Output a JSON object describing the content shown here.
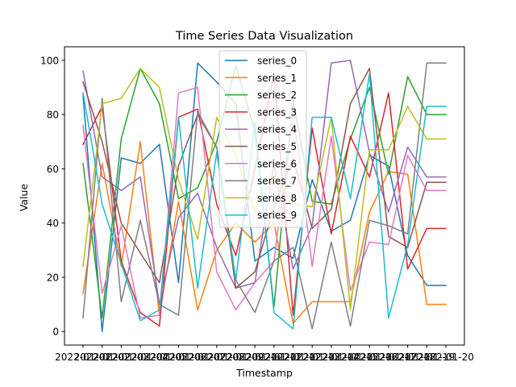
{
  "chart_data": {
    "type": "line",
    "title": "Time Series Data Visualization",
    "xlabel": "Timestamp",
    "ylabel": "Value",
    "x": [
      "2022-01-01",
      "2022-01-02",
      "2022-01-03",
      "2022-01-04",
      "2022-01-05",
      "2022-01-06",
      "2022-01-07",
      "2022-01-08",
      "2022-01-09",
      "2022-01-10",
      "2022-01-11",
      "2022-01-12",
      "2022-01-13",
      "2022-01-14",
      "2022-01-15",
      "2022-01-16",
      "2022-01-17",
      "2022-01-18",
      "2022-01-19",
      "2022-01-20"
    ],
    "xtick_labels": [
      "2022-01-01",
      "2022-01-02",
      "2022-01-03",
      "2022-01-04",
      "2022-01-05",
      "2022-01-06",
      "2022-01-07",
      "2022-01-08",
      "2022-01-09",
      "2022-01-10",
      "2022-01-11",
      "2022-01-12",
      "2022-01-13",
      "2022-01-14",
      "2022-01-15",
      "2022-01-16",
      "2022-01-17",
      "2022-01-18",
      "2022-01-19",
      "2022-01-20"
    ],
    "ylim": [
      -5,
      105
    ],
    "yticks": [
      0,
      20,
      40,
      60,
      80,
      100
    ],
    "grid": false,
    "legend_position": "top-center",
    "series": [
      {
        "name": "series_0",
        "color": "#1f77b4",
        "values": [
          87,
          0,
          64,
          62,
          69,
          18,
          99,
          92,
          84,
          26,
          31,
          27,
          56,
          37,
          41,
          65,
          61,
          28,
          17,
          17
        ]
      },
      {
        "name": "series_1",
        "color": "#ff7f0e",
        "values": [
          14,
          62,
          24,
          70,
          6,
          48,
          8,
          30,
          40,
          33,
          40,
          3,
          11,
          11,
          11,
          44,
          59,
          58,
          10,
          10
        ]
      },
      {
        "name": "series_2",
        "color": "#2ca02c",
        "values": [
          62,
          5,
          71,
          97,
          84,
          49,
          53,
          70,
          98,
          74,
          9,
          85,
          48,
          47,
          71,
          90,
          58,
          94,
          80,
          80
        ]
      },
      {
        "name": "series_3",
        "color": "#d62728",
        "values": [
          69,
          83,
          26,
          7,
          2,
          79,
          82,
          47,
          28,
          60,
          95,
          6,
          75,
          36,
          72,
          57,
          88,
          23,
          38,
          38
        ]
      },
      {
        "name": "series_4",
        "color": "#9467bd",
        "values": [
          96,
          57,
          52,
          57,
          10,
          42,
          51,
          31,
          16,
          18,
          62,
          23,
          39,
          99,
          100,
          66,
          44,
          68,
          57,
          57
        ]
      },
      {
        "name": "series_5",
        "color": "#8c564b",
        "values": [
          92,
          70,
          40,
          29,
          18,
          61,
          80,
          68,
          16,
          22,
          46,
          64,
          38,
          45,
          84,
          97,
          35,
          31,
          55,
          55
        ]
      },
      {
        "name": "series_6",
        "color": "#e377c2",
        "values": [
          76,
          14,
          39,
          5,
          6,
          88,
          90,
          22,
          8,
          18,
          26,
          82,
          24,
          72,
          15,
          33,
          32,
          65,
          52,
          52
        ]
      },
      {
        "name": "series_7",
        "color": "#7f7f7f",
        "values": [
          5,
          86,
          11,
          41,
          10,
          6,
          81,
          68,
          19,
          7,
          26,
          31,
          1,
          33,
          2,
          41,
          39,
          36,
          99,
          99
        ]
      },
      {
        "name": "series_8",
        "color": "#bcbd22",
        "values": [
          24,
          84,
          86,
          97,
          90,
          56,
          34,
          79,
          65,
          44,
          58,
          47,
          46,
          79,
          8,
          67,
          67,
          83,
          71,
          71
        ]
      },
      {
        "name": "series_9",
        "color": "#17becf",
        "values": [
          88,
          47,
          25,
          4,
          8,
          79,
          16,
          66,
          19,
          77,
          7,
          1,
          79,
          79,
          49,
          95,
          5,
          32,
          83,
          83
        ]
      }
    ]
  }
}
